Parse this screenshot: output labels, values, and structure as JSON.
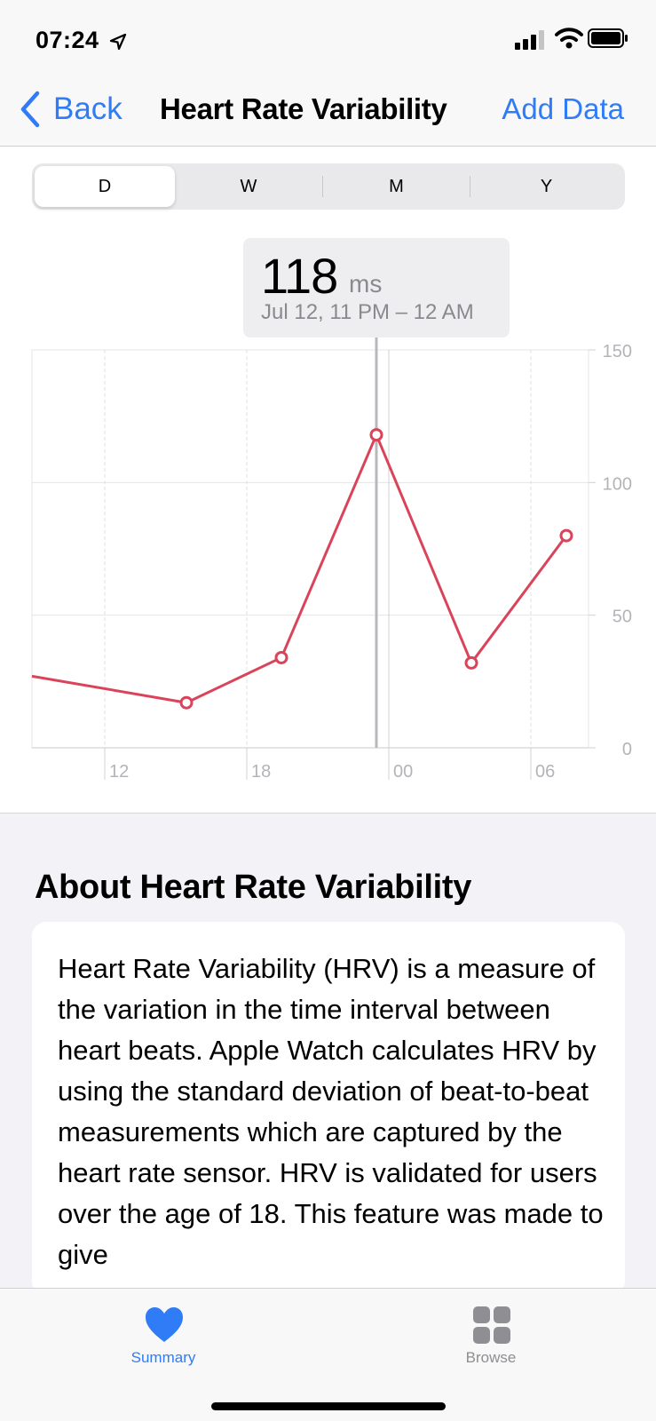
{
  "status": {
    "time": "07:24"
  },
  "nav": {
    "back_label": "Back",
    "title": "Heart Rate Variability",
    "add_label": "Add Data"
  },
  "segments": [
    {
      "label": "D",
      "active": true
    },
    {
      "label": "W",
      "active": false
    },
    {
      "label": "M",
      "active": false
    },
    {
      "label": "Y",
      "active": false
    }
  ],
  "selection": {
    "value": "118",
    "unit": "ms",
    "date_range": "Jul 12, 11 PM – 12 AM"
  },
  "chart_data": {
    "type": "line",
    "x_ticks": [
      "12",
      "18",
      "00",
      "06"
    ],
    "y_ticks": [
      "150",
      "100",
      "50",
      "0"
    ],
    "ylim": [
      0,
      150
    ],
    "points": [
      {
        "x": "before 12",
        "y": 27
      },
      {
        "x": "~15",
        "y": 17
      },
      {
        "x": "~19",
        "y": 34
      },
      {
        "x": "~23",
        "y": 118
      },
      {
        "x": "~03",
        "y": 32
      },
      {
        "x": "~07",
        "y": 80
      }
    ],
    "series_color": "#d9445a",
    "highlighted_point": 3,
    "grid": true
  },
  "about": {
    "title": "About Heart Rate Variability",
    "text": "Heart Rate Variability (HRV) is a measure of the variation in the time interval between heart beats. Apple Watch calculates HRV by using the standard deviation of beat-to-beat measurements which are captured by the heart rate sensor. HRV is validated for users over the age of 18. This feature was made to give"
  },
  "tabs": [
    {
      "label": "Summary",
      "active": true,
      "icon": "heart-icon"
    },
    {
      "label": "Browse",
      "active": false,
      "icon": "grid-icon"
    }
  ],
  "colors": {
    "accent": "#2f7cf6",
    "series": "#d9445a",
    "inactive_tab": "#8e8e93"
  }
}
